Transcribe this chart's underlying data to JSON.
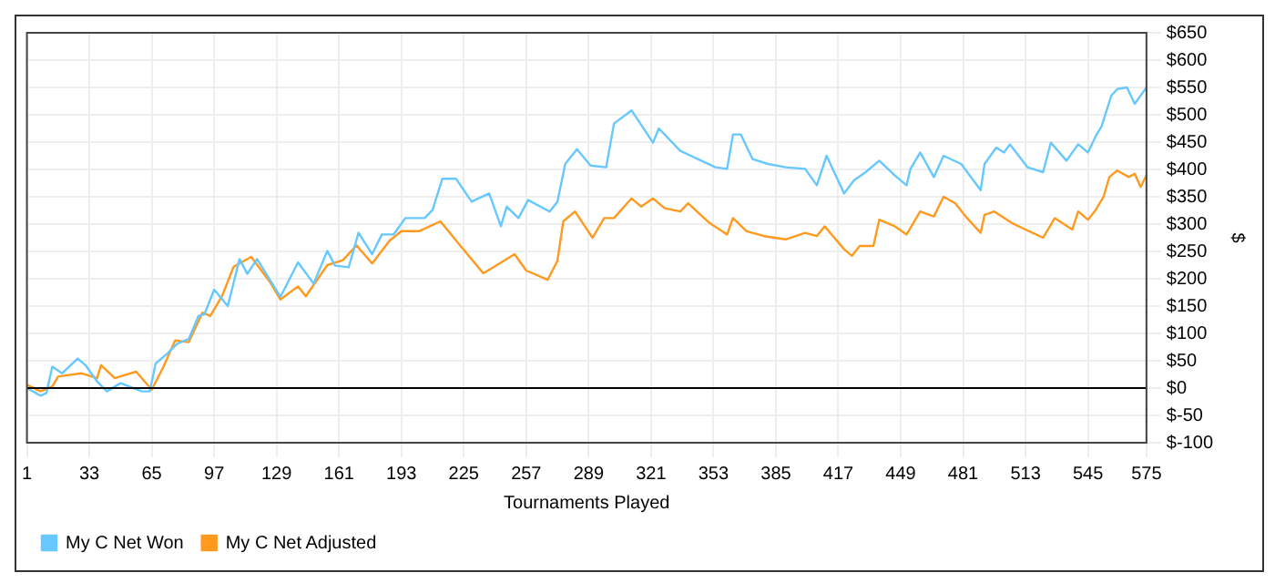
{
  "chart_data": {
    "type": "line",
    "xlabel": "Tournaments Played",
    "ylabel": "$",
    "xlim": [
      1,
      575
    ],
    "xticks": [
      1,
      33,
      65,
      97,
      129,
      161,
      193,
      225,
      257,
      289,
      321,
      353,
      385,
      417,
      449,
      481,
      513,
      545,
      575
    ],
    "ylim": [
      -100,
      650
    ],
    "yticks": [
      {
        "value": -100,
        "label": "$-100"
      },
      {
        "value": -50,
        "label": "$-50"
      },
      {
        "value": 0,
        "label": "$0"
      },
      {
        "value": 50,
        "label": "$50"
      },
      {
        "value": 100,
        "label": "$100"
      },
      {
        "value": 150,
        "label": "$150"
      },
      {
        "value": 200,
        "label": "$200"
      },
      {
        "value": 250,
        "label": "$250"
      },
      {
        "value": 300,
        "label": "$300"
      },
      {
        "value": 350,
        "label": "$350"
      },
      {
        "value": 400,
        "label": "$400"
      },
      {
        "value": 450,
        "label": "$450"
      },
      {
        "value": 500,
        "label": "$500"
      },
      {
        "value": 550,
        "label": "$550"
      },
      {
        "value": 600,
        "label": "$600"
      },
      {
        "value": 650,
        "label": "$650"
      }
    ],
    "grid": true,
    "legend": "bottom left",
    "marker": "none",
    "line_style": "solid",
    "ref_lines": [
      {
        "axis": "y",
        "value": 0,
        "color": "#000000"
      }
    ],
    "series": [
      {
        "name": "My C Net Won",
        "color": "#66c8ff",
        "x": [
          1,
          8,
          11,
          14,
          19,
          27,
          31,
          37,
          42,
          49,
          60,
          64,
          67,
          73,
          78,
          84,
          89,
          92,
          97,
          104,
          110,
          114,
          119,
          131,
          140,
          148,
          155,
          159,
          166,
          171,
          178,
          183,
          189,
          195,
          205,
          209,
          214,
          221,
          229,
          238,
          244,
          247,
          253,
          258,
          269,
          273,
          277,
          283,
          290,
          298,
          302,
          311,
          322,
          325,
          336,
          354,
          360,
          363,
          367,
          373,
          381,
          390,
          400,
          406,
          411,
          420,
          425,
          431,
          438,
          446,
          452,
          454,
          459,
          466,
          471,
          480,
          490,
          492,
          498,
          502,
          505,
          514,
          522,
          526,
          534,
          540,
          545,
          549,
          552,
          557,
          560,
          565,
          569,
          575
        ],
        "values": [
          0,
          -14,
          -9,
          39,
          27,
          54,
          42,
          12,
          -6,
          9,
          -6,
          -6,
          45,
          63,
          81,
          90,
          132,
          135,
          180,
          150,
          236,
          209,
          236,
          167,
          230,
          191,
          251,
          224,
          221,
          284,
          245,
          281,
          281,
          311,
          311,
          326,
          383,
          383,
          341,
          356,
          296,
          332,
          311,
          344,
          323,
          341,
          410,
          437,
          407,
          404,
          484,
          508,
          449,
          475,
          434,
          404,
          401,
          464,
          464,
          419,
          410,
          404,
          401,
          371,
          425,
          356,
          380,
          395,
          416,
          389,
          371,
          401,
          431,
          386,
          425,
          410,
          362,
          410,
          440,
          431,
          446,
          404,
          395,
          449,
          416,
          446,
          431,
          461,
          479,
          535,
          547,
          550,
          520,
          550
        ]
      },
      {
        "name": "My C Net Adjusted",
        "color": "#ff9a1f",
        "x": [
          1,
          8,
          14,
          17,
          29,
          37,
          39,
          46,
          57,
          65,
          71,
          77,
          84,
          91,
          95,
          101,
          107,
          116,
          126,
          131,
          140,
          144,
          155,
          163,
          170,
          178,
          187,
          193,
          202,
          213,
          224,
          235,
          242,
          251,
          257,
          268,
          273,
          276,
          282,
          291,
          297,
          302,
          311,
          316,
          322,
          328,
          336,
          340,
          351,
          360,
          363,
          370,
          379,
          390,
          400,
          406,
          410,
          420,
          424,
          428,
          435,
          438,
          446,
          452,
          459,
          466,
          471,
          477,
          483,
          490,
          492,
          497,
          506,
          513,
          522,
          528,
          537,
          540,
          545,
          549,
          553,
          556,
          560,
          566,
          569,
          572,
          575
        ],
        "values": [
          6,
          -6,
          3,
          21,
          27,
          18,
          42,
          18,
          30,
          -3,
          39,
          87,
          84,
          138,
          132,
          168,
          222,
          240,
          192,
          162,
          186,
          168,
          225,
          234,
          261,
          228,
          270,
          287,
          287,
          305,
          257,
          210,
          225,
          245,
          215,
          198,
          233,
          305,
          323,
          275,
          311,
          311,
          347,
          332,
          347,
          329,
          323,
          338,
          302,
          281,
          311,
          287,
          278,
          272,
          284,
          278,
          296,
          254,
          242,
          260,
          260,
          308,
          296,
          281,
          323,
          314,
          350,
          338,
          311,
          284,
          317,
          323,
          302,
          290,
          275,
          311,
          290,
          323,
          308,
          326,
          350,
          386,
          398,
          386,
          392,
          368,
          389
        ]
      }
    ]
  }
}
